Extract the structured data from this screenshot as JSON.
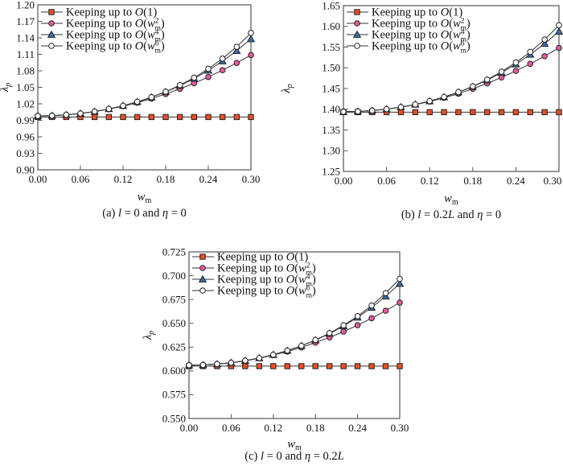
{
  "figure": {
    "background": "#ffffff",
    "frame_color": "#555555",
    "line_color": "#333333",
    "marker_outline_color": "#222222",
    "series_styles": [
      {
        "name": "Keeping up to O(1)",
        "marker": "filled-square",
        "fill": "#ee4e23"
      },
      {
        "name": "Keeping up to O(w_m^2)",
        "marker": "filled-circle",
        "fill": "#e75b9f"
      },
      {
        "name": "Keeping up to O(w_m^4)",
        "marker": "filled-triangle",
        "fill": "#3b6db0"
      },
      {
        "name": "Keeping up to O(w_m^6)",
        "marker": "open-circle",
        "fill": "#ffffff"
      }
    ],
    "legend": {
      "position": "top-left",
      "prefix": "Keeping up to ",
      "entries": [
        {
          "func": "O",
          "arg": "1"
        },
        {
          "func": "O",
          "base": "w",
          "sub": "m",
          "sup": "2"
        },
        {
          "func": "O",
          "base": "w",
          "sub": "m",
          "sup": "4"
        },
        {
          "func": "O",
          "base": "w",
          "sub": "m",
          "sup": "6"
        }
      ]
    }
  },
  "chart_data": [
    {
      "type": "line",
      "id": "a",
      "caption": "(a) l = 0 and η = 0",
      "caption_parts": [
        {
          "t": "(a) "
        },
        {
          "t": "l",
          "i": true
        },
        {
          "t": " = 0 and "
        },
        {
          "t": "η",
          "i": true
        },
        {
          "t": " = 0"
        }
      ],
      "xlabel": "w_m",
      "ylabel": "λ_p",
      "grid": false,
      "legend_position": "top-left",
      "xlim": [
        0.0,
        0.3
      ],
      "ylim": [
        0.9,
        1.2
      ],
      "xticks": [
        "0.00",
        "0.06",
        "0.12",
        "0.18",
        "0.24",
        "0.30"
      ],
      "yticks": [
        "0.90",
        "0.93",
        "0.96",
        "0.99",
        "1.02",
        "1.05",
        "1.08",
        "1.11",
        "1.14",
        "1.17",
        "1.20"
      ],
      "x": [
        0.0,
        0.02,
        0.04,
        0.06,
        0.08,
        0.1,
        0.12,
        0.14,
        0.16,
        0.18,
        0.2,
        0.22,
        0.24,
        0.26,
        0.28,
        0.3
      ],
      "series": [
        {
          "name": "Keeping up to O(1)",
          "values": [
            0.996,
            0.996,
            0.996,
            0.996,
            0.996,
            0.996,
            0.996,
            0.996,
            0.996,
            0.996,
            0.996,
            0.996,
            0.996,
            0.996,
            0.996,
            0.996
          ]
        },
        {
          "name": "Keeping up to O(w_m^2)",
          "values": [
            0.998,
            0.9985,
            1.0,
            1.0024,
            1.0059,
            1.0103,
            1.0157,
            1.0221,
            1.0295,
            1.0379,
            1.0472,
            1.0575,
            1.0688,
            1.0811,
            1.0944,
            1.1087
          ]
        },
        {
          "name": "Keeping up to O(w_m^4)",
          "values": [
            0.998,
            0.9985,
            1.0,
            1.0024,
            1.006,
            1.0107,
            1.0165,
            1.0235,
            1.0319,
            1.0416,
            1.053,
            1.0659,
            1.0808,
            1.0976,
            1.1165,
            1.1379
          ]
        },
        {
          "name": "Keeping up to O(w_m^6)",
          "values": [
            0.998,
            0.9985,
            1.0,
            1.0024,
            1.006,
            1.0107,
            1.0165,
            1.0236,
            1.0321,
            1.0421,
            1.054,
            1.0676,
            1.0837,
            1.1022,
            1.1237,
            1.1488
          ]
        }
      ]
    },
    {
      "type": "line",
      "id": "b",
      "caption": "(b) l = 0.2L and η = 0",
      "caption_parts": [
        {
          "t": "(b) "
        },
        {
          "t": "l",
          "i": true
        },
        {
          "t": " = 0.2"
        },
        {
          "t": "L",
          "i": true
        },
        {
          "t": " and "
        },
        {
          "t": "η",
          "i": true
        },
        {
          "t": " = 0"
        }
      ],
      "xlabel": "w_m",
      "ylabel": "λ_p",
      "grid": false,
      "legend_position": "top-left",
      "xlim": [
        0.0,
        0.3
      ],
      "ylim": [
        1.25,
        1.65
      ],
      "xticks": [
        "0.00",
        "0.06",
        "0.12",
        "0.18",
        "0.24",
        "0.30"
      ],
      "yticks": [
        "1.25",
        "1.30",
        "1.35",
        "1.40",
        "1.45",
        "1.50",
        "1.55",
        "1.60",
        "1.65"
      ],
      "x": [
        0.0,
        0.02,
        0.04,
        0.06,
        0.08,
        0.1,
        0.12,
        0.14,
        0.16,
        0.18,
        0.2,
        0.22,
        0.24,
        0.26,
        0.28,
        0.3
      ],
      "series": [
        {
          "name": "Keeping up to O(1)",
          "values": [
            1.393,
            1.393,
            1.393,
            1.393,
            1.393,
            1.393,
            1.393,
            1.393,
            1.393,
            1.393,
            1.393,
            1.393,
            1.393,
            1.393,
            1.393,
            1.393
          ]
        },
        {
          "name": "Keeping up to O(w_m^2)",
          "values": [
            1.394,
            1.3947,
            1.3967,
            1.4002,
            1.4049,
            1.4111,
            1.4186,
            1.4275,
            1.4378,
            1.4494,
            1.4624,
            1.4768,
            1.4925,
            1.5096,
            1.5281,
            1.5479
          ]
        },
        {
          "name": "Keeping up to O(w_m^4)",
          "values": [
            1.394,
            1.3947,
            1.3967,
            1.4003,
            1.4051,
            1.4116,
            1.4196,
            1.4294,
            1.441,
            1.4545,
            1.4702,
            1.4883,
            1.5088,
            1.532,
            1.5582,
            1.5876
          ]
        },
        {
          "name": "Keeping up to O(w_m^6)",
          "values": [
            1.394,
            1.3947,
            1.3967,
            1.4003,
            1.4051,
            1.4116,
            1.4197,
            1.4296,
            1.4413,
            1.4552,
            1.4715,
            1.4906,
            1.5127,
            1.5384,
            1.5681,
            1.6026
          ]
        }
      ]
    },
    {
      "type": "line",
      "id": "c",
      "caption": "(c) l = 0 and η = 0.2L",
      "caption_parts": [
        {
          "t": "(c) "
        },
        {
          "t": "l",
          "i": true
        },
        {
          "t": " = 0 and "
        },
        {
          "t": "η",
          "i": true
        },
        {
          "t": " = 0.2"
        },
        {
          "t": "L",
          "i": true
        }
      ],
      "xlabel": "w_m",
      "ylabel": "λ_p",
      "grid": false,
      "legend_position": "top-left",
      "xlim": [
        0.0,
        0.3
      ],
      "ylim": [
        0.55,
        0.725
      ],
      "xticks": [
        "0.00",
        "0.06",
        "0.12",
        "0.18",
        "0.24",
        "0.30"
      ],
      "yticks": [
        "0.550",
        "0.575",
        "0.600",
        "0.625",
        "0.650",
        "0.675",
        "0.700",
        "0.725"
      ],
      "x": [
        0.0,
        0.02,
        0.04,
        0.06,
        0.08,
        0.1,
        0.12,
        0.14,
        0.16,
        0.18,
        0.2,
        0.22,
        0.24,
        0.26,
        0.28,
        0.3
      ],
      "series": [
        {
          "name": "Keeping up to O(1)",
          "values": [
            0.605,
            0.605,
            0.605,
            0.605,
            0.605,
            0.605,
            0.605,
            0.605,
            0.605,
            0.605,
            0.605,
            0.605,
            0.605,
            0.605,
            0.605,
            0.605
          ]
        },
        {
          "name": "Keeping up to O(w_m^2)",
          "values": [
            0.606,
            0.6063,
            0.6072,
            0.6086,
            0.6107,
            0.6133,
            0.6165,
            0.6203,
            0.6247,
            0.6297,
            0.6352,
            0.6413,
            0.648,
            0.6553,
            0.6632,
            0.6717
          ]
        },
        {
          "name": "Keeping up to O(w_m^4)",
          "values": [
            0.606,
            0.6063,
            0.6072,
            0.6086,
            0.6108,
            0.6135,
            0.617,
            0.6213,
            0.6263,
            0.6323,
            0.6392,
            0.6471,
            0.6562,
            0.6666,
            0.6784,
            0.6917
          ]
        },
        {
          "name": "Keeping up to O(w_m^6)",
          "values": [
            0.606,
            0.6063,
            0.6072,
            0.6086,
            0.6108,
            0.6135,
            0.617,
            0.6214,
            0.6264,
            0.6325,
            0.6397,
            0.6479,
            0.6575,
            0.6687,
            0.6817,
            0.6967
          ]
        }
      ]
    }
  ]
}
